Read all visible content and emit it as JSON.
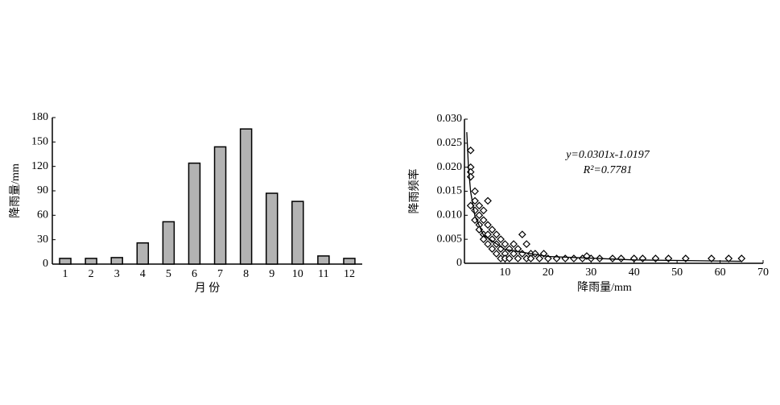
{
  "chart_data": [
    {
      "type": "bar",
      "xlabel": "月 份",
      "ylabel": "降雨量/mm",
      "categories": [
        "1",
        "2",
        "3",
        "4",
        "5",
        "6",
        "7",
        "8",
        "9",
        "10",
        "11",
        "12"
      ],
      "values": [
        7,
        7,
        8,
        26,
        52,
        124,
        144,
        166,
        87,
        77,
        10,
        7
      ],
      "color": "#b3b3b3",
      "ylim": [
        0,
        180
      ],
      "yticks": [
        0,
        30,
        60,
        90,
        120,
        150,
        180
      ]
    },
    {
      "type": "scatter",
      "xlabel": "降雨量/mm",
      "ylabel": "降雨频率",
      "annotations": [
        "y=0.0301x-1.0197",
        "R²=0.7781"
      ],
      "xlim": [
        0,
        70
      ],
      "xticks": [
        10,
        20,
        30,
        40,
        50,
        60,
        70
      ],
      "ylim": [
        0,
        0.03
      ],
      "yticks": [
        0,
        0.005,
        {
          "value": 0.01,
          "label": "0.010"
        },
        0.015,
        {
          "value": 0.02,
          "label": "0.020"
        },
        0.025,
        {
          "value": 0.03,
          "label": "0.030"
        }
      ],
      "series": [
        {
          "color": "#000000",
          "marker": "diamond",
          "x": [
            2,
            2,
            2,
            2,
            2,
            3,
            3,
            3,
            3,
            4,
            4,
            4,
            4,
            5,
            5,
            5,
            5,
            6,
            6,
            6,
            6,
            7,
            7,
            7,
            8,
            8,
            8,
            9,
            9,
            9,
            10,
            10,
            10,
            11,
            11,
            12,
            12,
            13,
            13,
            14,
            14,
            15,
            15,
            16,
            16,
            17,
            18,
            19,
            20,
            22,
            24,
            26,
            28,
            29,
            30,
            32,
            35,
            37,
            40,
            42,
            45,
            48,
            52,
            58,
            62,
            65
          ],
          "values": [
            0.02,
            0.019,
            0.018,
            0.0235,
            0.012,
            0.015,
            0.013,
            0.011,
            0.009,
            0.012,
            0.01,
            0.008,
            0.007,
            0.011,
            0.009,
            0.006,
            0.005,
            0.013,
            0.008,
            0.006,
            0.004,
            0.007,
            0.005,
            0.003,
            0.006,
            0.004,
            0.002,
            0.005,
            0.003,
            0.001,
            0.004,
            0.002,
            0.001,
            0.003,
            0.001,
            0.004,
            0.002,
            0.003,
            0.001,
            0.006,
            0.002,
            0.004,
            0.001,
            0.002,
            0.001,
            0.002,
            0.001,
            0.002,
            0.001,
            0.001,
            0.001,
            0.001,
            0.001,
            0.0015,
            0.001,
            0.001,
            0.001,
            0.001,
            0.001,
            0.001,
            0.001,
            0.001,
            0.001,
            0.001,
            0.001,
            0.001
          ]
        },
        {
          "color": "#000000",
          "marker": "line",
          "x": [
            1.1,
            1.5,
            2,
            3,
            5,
            10,
            20,
            40,
            65
          ],
          "values": [
            0.0273,
            0.0199,
            0.01485,
            0.00982,
            0.00583,
            0.00288,
            0.00142,
            0.0007,
            0.00042
          ]
        }
      ]
    }
  ]
}
